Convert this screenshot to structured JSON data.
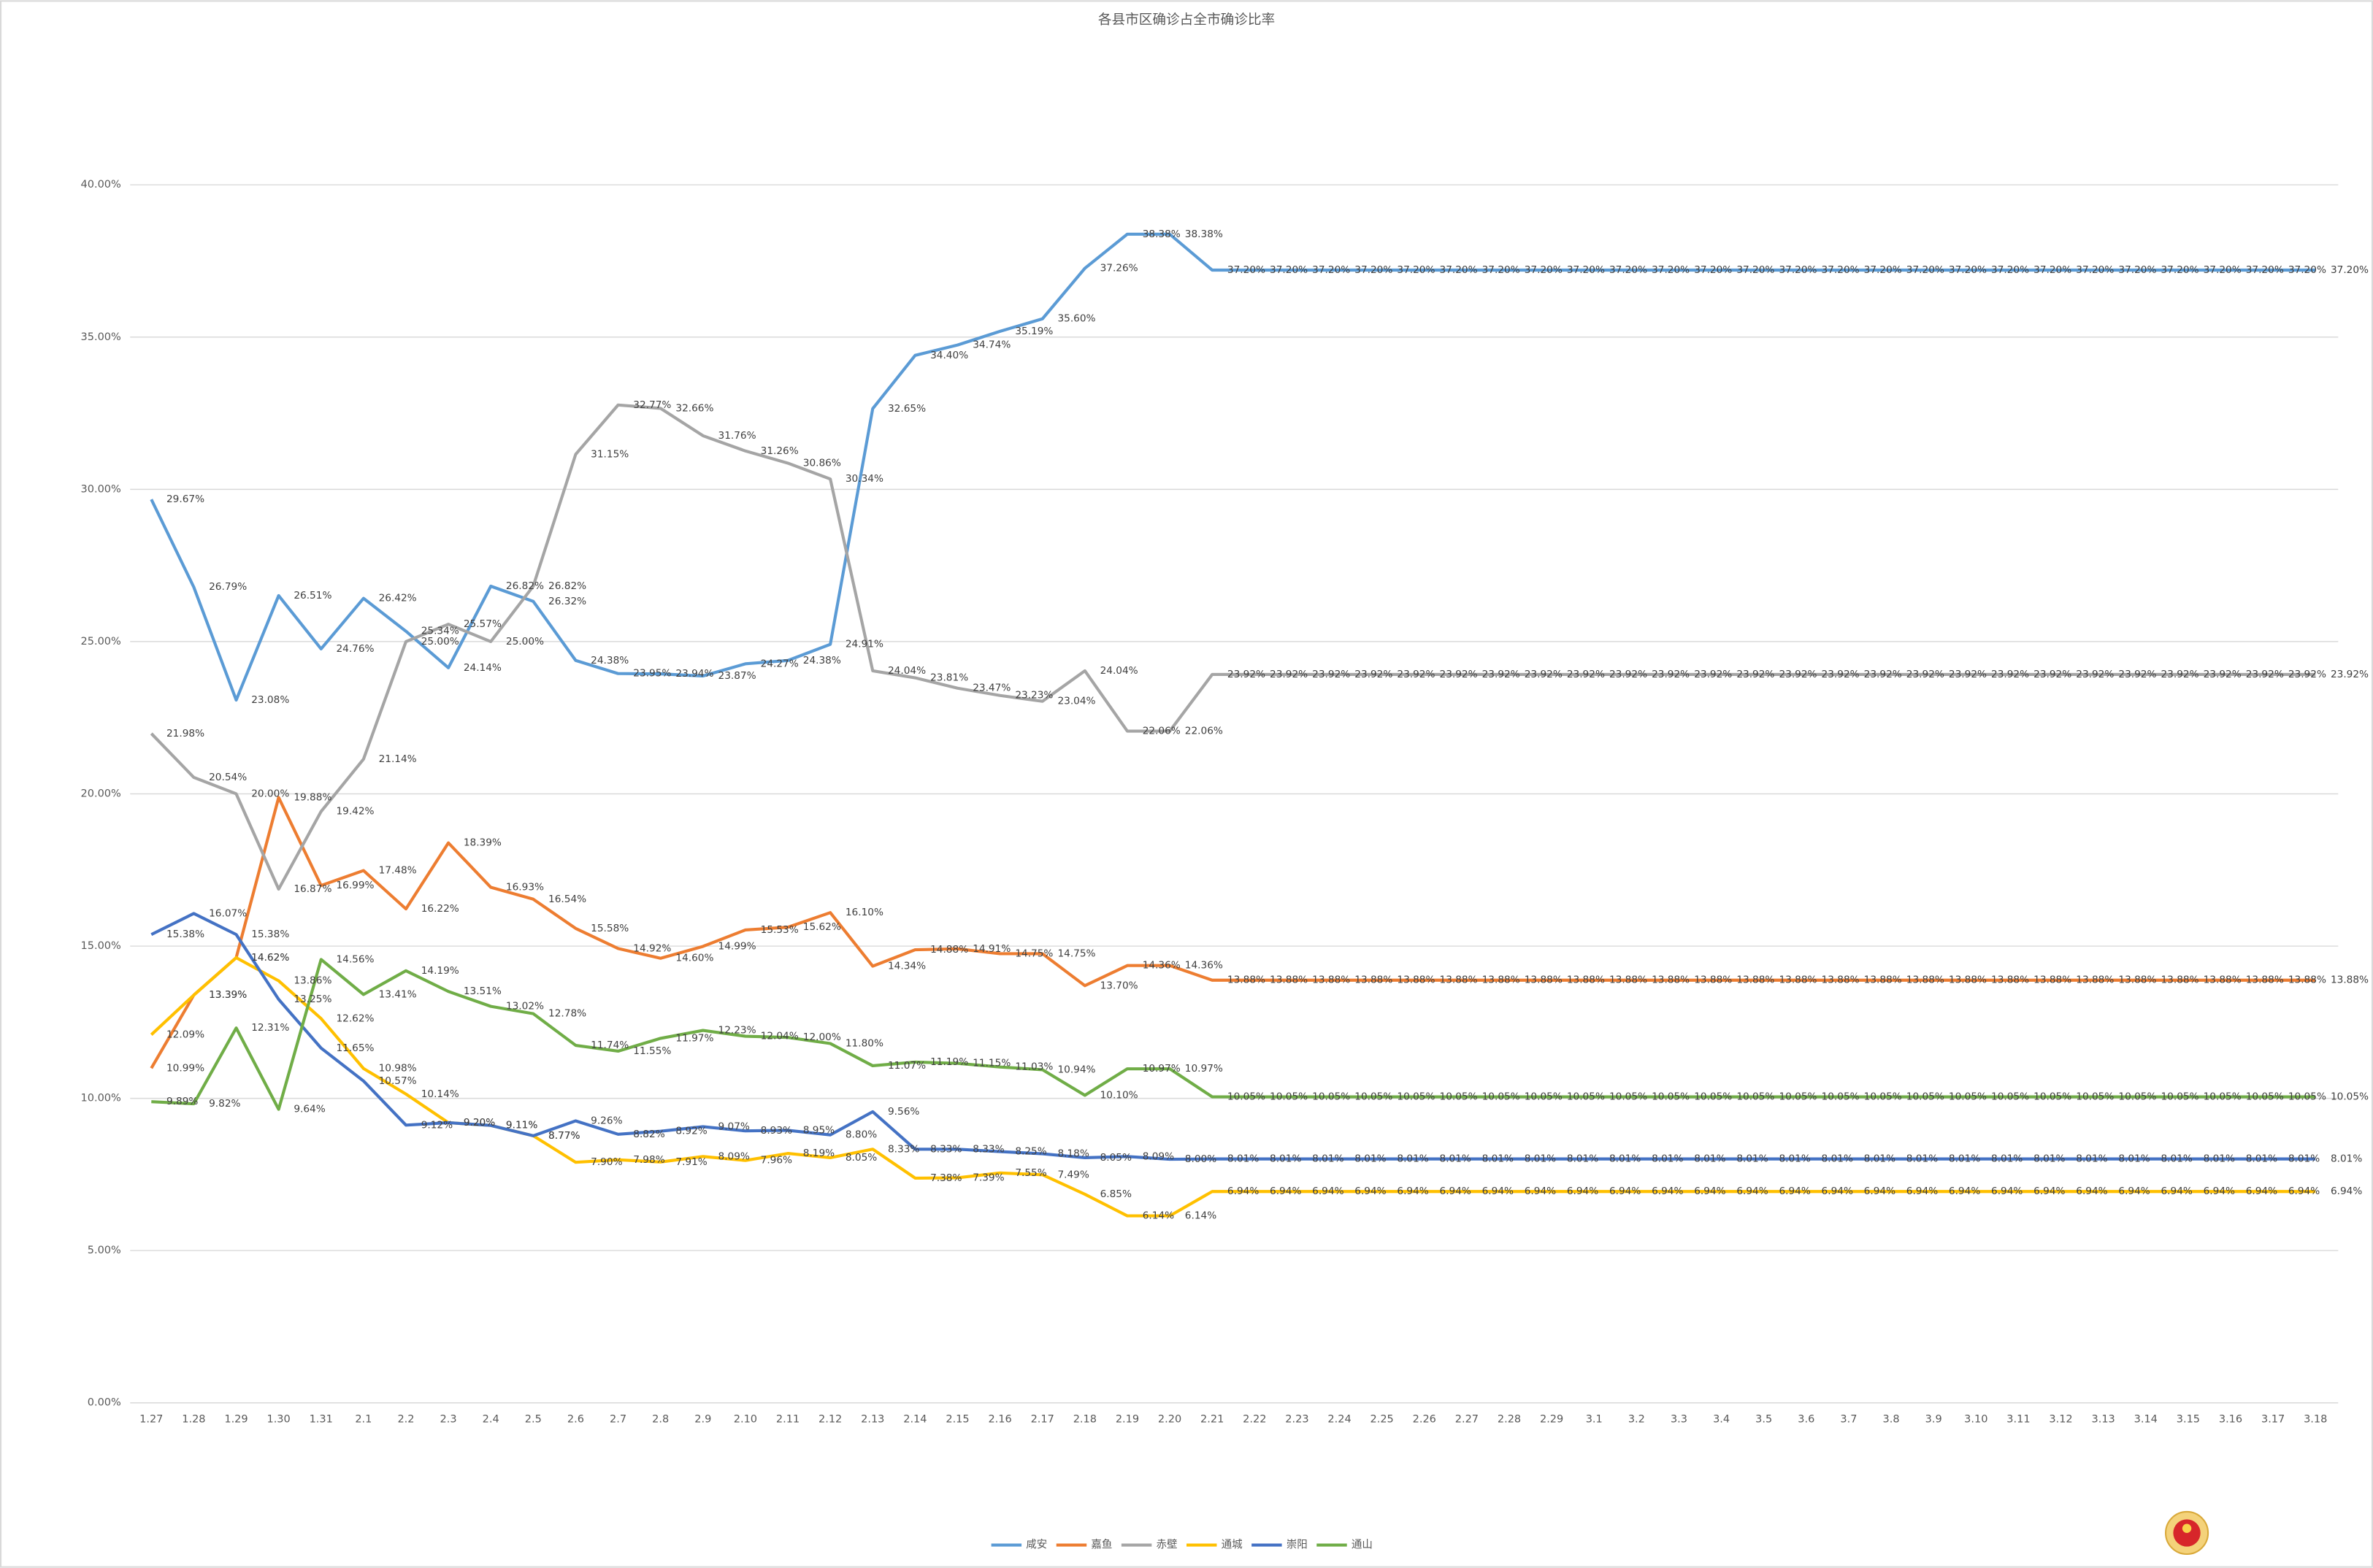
{
  "chart_data": {
    "type": "line",
    "title": "各县市区确诊占全市确诊比率",
    "categories": [
      "1.27",
      "1.28",
      "1.29",
      "1.30",
      "1.31",
      "2.1",
      "2.2",
      "2.3",
      "2.4",
      "2.5",
      "2.6",
      "2.7",
      "2.8",
      "2.9",
      "2.10",
      "2.11",
      "2.12",
      "2.13",
      "2.14",
      "2.15",
      "2.16",
      "2.17",
      "2.18",
      "2.19",
      "2.20",
      "2.21",
      "2.22",
      "2.23",
      "2.24",
      "2.25",
      "2.26",
      "2.27",
      "2.28",
      "2.29",
      "3.1",
      "3.2",
      "3.3",
      "3.4",
      "3.5",
      "3.6",
      "3.7",
      "3.8",
      "3.9",
      "3.10",
      "3.11",
      "3.12",
      "3.13",
      "3.14",
      "3.15",
      "3.16",
      "3.17",
      "3.18"
    ],
    "ylim": [
      0,
      40
    ],
    "yticks": [
      {
        "value": 0,
        "label": "0.00%"
      },
      {
        "value": 5,
        "label": "5.00%"
      },
      {
        "value": 10,
        "label": "10.00%"
      },
      {
        "value": 15,
        "label": "15.00%"
      },
      {
        "value": 20,
        "label": "20.00%"
      },
      {
        "value": 25,
        "label": "25.00%"
      },
      {
        "value": 30,
        "label": "30.00%"
      },
      {
        "value": 35,
        "label": "35.00%"
      },
      {
        "value": 40,
        "label": "40.00%"
      }
    ],
    "grid": true,
    "legend": "bottom",
    "series": [
      {
        "name": "咸安",
        "color": "#5b9bd5",
        "values": [
          29.67,
          26.79,
          23.08,
          26.51,
          24.76,
          26.42,
          25.34,
          24.14,
          26.82,
          26.32,
          24.38,
          23.95,
          23.94,
          23.87,
          24.27,
          24.38,
          24.91,
          32.65,
          34.4,
          34.74,
          35.19,
          35.6,
          37.26,
          38.38,
          38.38,
          37.2,
          37.2,
          37.2,
          37.2,
          37.2,
          37.2,
          37.2,
          37.2,
          37.2,
          37.2,
          37.2,
          37.2,
          37.2,
          37.2,
          37.2,
          37.2,
          37.2,
          37.2,
          37.2,
          37.2,
          37.2,
          37.2,
          37.2,
          37.2,
          37.2,
          37.2,
          37.2
        ],
        "value_labels": [
          "29.67%",
          "26.79%",
          "23.08%",
          "26.51%",
          "24.76%",
          "26.42%",
          "25.34%",
          "24.14%",
          "26.82%",
          "26.32%",
          "24.38%",
          "23.95%",
          "23.94%",
          "23.87%",
          "24.27%",
          "24.38%",
          "24.91%",
          "32.65%",
          "34.40%",
          "34.74%",
          "35.19%",
          "35.60%",
          "37.26%",
          "38.38%",
          "38.38%",
          "37.20%",
          "37.20%",
          "37.20%",
          "37.20%",
          "37.20%",
          "37.20%",
          "37.20%",
          "37.20%",
          "37.20%",
          "37.20%",
          "37.20%",
          "37.20%",
          "37.20%",
          "37.20%",
          "37.20%",
          "37.20%",
          "37.20%",
          "37.20%",
          "37.20%",
          "37.20%",
          "37.20%",
          "37.20%",
          "37.20%",
          "37.20%",
          "37.20%",
          "37.20%",
          "37.20%"
        ]
      },
      {
        "name": "嘉鱼",
        "color": "#ed7d31",
        "values": [
          10.99,
          13.39,
          14.62,
          19.88,
          16.99,
          17.48,
          16.22,
          18.39,
          16.93,
          16.54,
          15.58,
          14.92,
          14.6,
          14.99,
          15.53,
          15.62,
          16.1,
          14.34,
          14.88,
          14.91,
          14.75,
          14.75,
          13.7,
          14.36,
          14.36,
          13.88,
          13.88,
          13.88,
          13.88,
          13.88,
          13.88,
          13.88,
          13.88,
          13.88,
          13.88,
          13.88,
          13.88,
          13.88,
          13.88,
          13.88,
          13.88,
          13.88,
          13.88,
          13.88,
          13.88,
          13.88,
          13.88,
          13.88,
          13.88,
          13.88,
          13.88,
          13.88
        ],
        "value_labels": [
          "10.99%",
          "13.39%",
          "14.62%",
          "19.88%",
          "16.99%",
          "17.48%",
          "16.22%",
          "18.39%",
          "16.93%",
          "16.54%",
          "15.58%",
          "14.92%",
          "14.60%",
          "14.99%",
          "15.53%",
          "15.62%",
          "16.10%",
          "14.34%",
          "14.88%",
          "14.91%",
          "14.75%",
          "14.75%",
          "13.70%",
          "14.36%",
          "14.36%",
          "13.88%",
          "13.88%",
          "13.88%",
          "13.88%",
          "13.88%",
          "13.88%",
          "13.88%",
          "13.88%",
          "13.88%",
          "13.88%",
          "13.88%",
          "13.88%",
          "13.88%",
          "13.88%",
          "13.88%",
          "13.88%",
          "13.88%",
          "13.88%",
          "13.88%",
          "13.88%",
          "13.88%",
          "13.88%",
          "13.88%",
          "13.88%",
          "13.88%",
          "13.88%",
          "13.88%"
        ]
      },
      {
        "name": "赤壁",
        "color": "#a5a5a5",
        "values": [
          21.98,
          20.54,
          20.0,
          16.87,
          19.42,
          21.14,
          25.0,
          25.57,
          25.0,
          26.82,
          31.15,
          32.77,
          32.66,
          31.76,
          31.26,
          30.86,
          30.34,
          24.04,
          23.81,
          23.47,
          23.23,
          23.04,
          24.04,
          22.06,
          22.06,
          23.92,
          23.92,
          23.92,
          23.92,
          23.92,
          23.92,
          23.92,
          23.92,
          23.92,
          23.92,
          23.92,
          23.92,
          23.92,
          23.92,
          23.92,
          23.92,
          23.92,
          23.92,
          23.92,
          23.92,
          23.92,
          23.92,
          23.92,
          23.92,
          23.92,
          23.92,
          23.92
        ],
        "value_labels": [
          "21.98%",
          "20.54%",
          "20.00%",
          "16.87%",
          "19.42%",
          "21.14%",
          "25.00%",
          "25.57%",
          "25.00%",
          "26.82%",
          "31.15%",
          "32.77%",
          "32.66%",
          "31.76%",
          "31.26%",
          "30.86%",
          "30.34%",
          "24.04%",
          "23.81%",
          "23.47%",
          "23.23%",
          "23.04%",
          "24.04%",
          "22.06%",
          "22.06%",
          "23.92%",
          "23.92%",
          "23.92%",
          "23.92%",
          "23.92%",
          "23.92%",
          "23.92%",
          "23.92%",
          "23.92%",
          "23.92%",
          "23.92%",
          "23.92%",
          "23.92%",
          "23.92%",
          "23.92%",
          "23.92%",
          "23.92%",
          "23.92%",
          "23.92%",
          "23.92%",
          "23.92%",
          "23.92%",
          "23.92%",
          "23.92%",
          "23.92%",
          "23.92%",
          "23.92%"
        ]
      },
      {
        "name": "通城",
        "color": "#ffc000",
        "values": [
          12.09,
          13.39,
          14.62,
          13.86,
          12.62,
          10.98,
          10.14,
          9.2,
          9.11,
          8.77,
          7.9,
          7.98,
          7.91,
          8.09,
          7.96,
          8.19,
          8.05,
          8.33,
          7.38,
          7.39,
          7.55,
          7.49,
          6.85,
          6.14,
          6.14,
          6.94,
          6.94,
          6.94,
          6.94,
          6.94,
          6.94,
          6.94,
          6.94,
          6.94,
          6.94,
          6.94,
          6.94,
          6.94,
          6.94,
          6.94,
          6.94,
          6.94,
          6.94,
          6.94,
          6.94,
          6.94,
          6.94,
          6.94,
          6.94,
          6.94,
          6.94,
          6.94
        ],
        "value_labels": [
          "12.09%",
          "13.39%",
          "14.62%",
          "13.86%",
          "12.62%",
          "10.98%",
          "10.14%",
          "9.20%",
          "9.11%",
          "8.77%",
          "7.90%",
          "7.98%",
          "7.91%",
          "8.09%",
          "7.96%",
          "8.19%",
          "8.05%",
          "8.33%",
          "7.38%",
          "7.39%",
          "7.55%",
          "7.49%",
          "6.85%",
          "6.14%",
          "6.14%",
          "6.94%",
          "6.94%",
          "6.94%",
          "6.94%",
          "6.94%",
          "6.94%",
          "6.94%",
          "6.94%",
          "6.94%",
          "6.94%",
          "6.94%",
          "6.94%",
          "6.94%",
          "6.94%",
          "6.94%",
          "6.94%",
          "6.94%",
          "6.94%",
          "6.94%",
          "6.94%",
          "6.94%",
          "6.94%",
          "6.94%",
          "6.94%",
          "6.94%",
          "6.94%",
          "6.94%"
        ]
      },
      {
        "name": "崇阳",
        "color": "#4472c4",
        "values": [
          15.38,
          16.07,
          15.38,
          13.25,
          11.65,
          10.57,
          9.12,
          9.2,
          9.11,
          8.77,
          9.26,
          8.82,
          8.92,
          9.07,
          8.93,
          8.95,
          8.8,
          9.56,
          8.33,
          8.33,
          8.25,
          8.18,
          8.05,
          8.09,
          8.0,
          8.01,
          8.01,
          8.01,
          8.01,
          8.01,
          8.01,
          8.01,
          8.01,
          8.01,
          8.01,
          8.01,
          8.01,
          8.01,
          8.01,
          8.01,
          8.01,
          8.01,
          8.01,
          8.01,
          8.01,
          8.01,
          8.01,
          8.01,
          8.01,
          8.01,
          8.01,
          8.01
        ],
        "value_labels": [
          "15.38%",
          "16.07%",
          "15.38%",
          "13.25%",
          "11.65%",
          "10.57%",
          "9.12%",
          "9.20%",
          "9.11%",
          "8.77%",
          "9.26%",
          "8.82%",
          "8.92%",
          "9.07%",
          "8.93%",
          "8.95%",
          "8.80%",
          "9.56%",
          "8.33%",
          "8.33%",
          "8.25%",
          "8.18%",
          "8.05%",
          "8.09%",
          "8.00%",
          "8.01%",
          "8.01%",
          "8.01%",
          "8.01%",
          "8.01%",
          "8.01%",
          "8.01%",
          "8.01%",
          "8.01%",
          "8.01%",
          "8.01%",
          "8.01%",
          "8.01%",
          "8.01%",
          "8.01%",
          "8.01%",
          "8.01%",
          "8.01%",
          "8.01%",
          "8.01%",
          "8.01%",
          "8.01%",
          "8.01%",
          "8.01%",
          "8.01%",
          "8.01%",
          "8.01%"
        ]
      },
      {
        "name": "通山",
        "color": "#70ad47",
        "values": [
          9.89,
          9.82,
          12.31,
          9.64,
          14.56,
          13.41,
          14.19,
          13.51,
          13.02,
          12.78,
          11.74,
          11.55,
          11.97,
          12.23,
          12.04,
          12.0,
          11.8,
          11.07,
          11.19,
          11.15,
          11.03,
          10.94,
          10.1,
          10.97,
          10.97,
          10.05,
          10.05,
          10.05,
          10.05,
          10.05,
          10.05,
          10.05,
          10.05,
          10.05,
          10.05,
          10.05,
          10.05,
          10.05,
          10.05,
          10.05,
          10.05,
          10.05,
          10.05,
          10.05,
          10.05,
          10.05,
          10.05,
          10.05,
          10.05,
          10.05,
          10.05,
          10.05
        ],
        "value_labels": [
          "9.89%",
          "9.82%",
          "12.31%",
          "9.64%",
          "14.56%",
          "13.41%",
          "14.19%",
          "13.51%",
          "13.02%",
          "12.78%",
          "11.74%",
          "11.55%",
          "11.97%",
          "12.23%",
          "12.04%",
          "12.00%",
          "11.80%",
          "11.07%",
          "11.19%",
          "11.15%",
          "11.03%",
          "10.94%",
          "10.10%",
          "10.97%",
          "10.97%",
          "10.05%",
          "10.05%",
          "10.05%",
          "10.05%",
          "10.05%",
          "10.05%",
          "10.05%",
          "10.05%",
          "10.05%",
          "10.05%",
          "10.05%",
          "10.05%",
          "10.05%",
          "10.05%",
          "10.05%",
          "10.05%",
          "10.05%",
          "10.05%",
          "10.05%",
          "10.05%",
          "10.05%",
          "10.05%",
          "10.05%",
          "10.05%",
          "10.05%",
          "10.05%",
          "10.05%"
        ]
      }
    ]
  }
}
